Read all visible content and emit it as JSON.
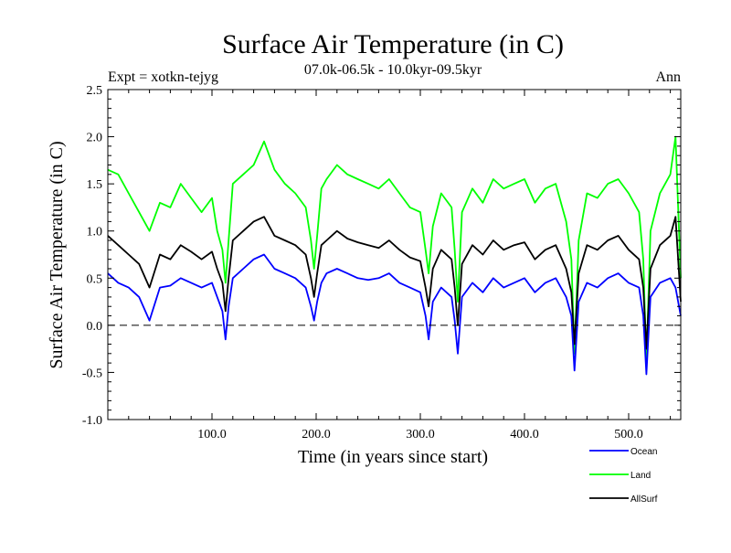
{
  "chart_data": {
    "type": "line",
    "title": "Surface Air Temperature (in C)",
    "subtitle": "07.0k-06.5k - 10.0kyr-09.5kyr",
    "expt_label": "Expt = xotkn-tejyg",
    "season_label": "Ann",
    "xlabel": "Time (in years since start)",
    "ylabel": "Surface Air Temperature (in C)",
    "xlim": [
      0,
      550
    ],
    "ylim": [
      -1.0,
      2.5
    ],
    "x_ticks": [
      100,
      200,
      300,
      400,
      500
    ],
    "x_tick_labels": [
      "100.0",
      "200.0",
      "300.0",
      "400.0",
      "500.0"
    ],
    "y_ticks": [
      -1.0,
      -0.5,
      0.0,
      0.5,
      1.0,
      1.5,
      2.0,
      2.5
    ],
    "y_tick_labels": [
      "-1.0",
      "-0.5",
      "0.0",
      "0.5",
      "1.0",
      "1.5",
      "2.0",
      "2.5"
    ],
    "reference_line": 0.0,
    "x": [
      0,
      10,
      20,
      30,
      40,
      50,
      60,
      70,
      80,
      90,
      100,
      105,
      110,
      113,
      116,
      120,
      130,
      140,
      150,
      160,
      170,
      180,
      190,
      195,
      198,
      201,
      205,
      210,
      220,
      230,
      240,
      250,
      260,
      270,
      280,
      290,
      300,
      305,
      308,
      312,
      320,
      330,
      333,
      336,
      340,
      350,
      360,
      370,
      380,
      390,
      400,
      410,
      420,
      430,
      440,
      445,
      448,
      452,
      460,
      470,
      480,
      490,
      500,
      510,
      514,
      517,
      521,
      530,
      540,
      545,
      550
    ],
    "series": [
      {
        "name": "Ocean",
        "color": "#0000ff",
        "values": [
          0.55,
          0.45,
          0.4,
          0.3,
          0.05,
          0.4,
          0.42,
          0.5,
          0.45,
          0.4,
          0.45,
          0.3,
          0.15,
          -0.15,
          0.2,
          0.5,
          0.6,
          0.7,
          0.75,
          0.6,
          0.55,
          0.5,
          0.4,
          0.2,
          0.05,
          0.25,
          0.45,
          0.55,
          0.6,
          0.55,
          0.5,
          0.48,
          0.5,
          0.55,
          0.45,
          0.4,
          0.35,
          0.1,
          -0.15,
          0.25,
          0.4,
          0.3,
          0.05,
          -0.3,
          0.3,
          0.45,
          0.35,
          0.5,
          0.4,
          0.45,
          0.5,
          0.35,
          0.45,
          0.5,
          0.3,
          0.1,
          -0.48,
          0.25,
          0.45,
          0.4,
          0.5,
          0.55,
          0.45,
          0.4,
          0.1,
          -0.52,
          0.3,
          0.45,
          0.5,
          0.4,
          0.1
        ]
      },
      {
        "name": "Land",
        "color": "#00ff00",
        "values": [
          1.65,
          1.6,
          1.4,
          1.2,
          1.0,
          1.3,
          1.25,
          1.5,
          1.35,
          1.2,
          1.35,
          1.0,
          0.8,
          0.45,
          0.9,
          1.5,
          1.6,
          1.7,
          1.95,
          1.65,
          1.5,
          1.4,
          1.25,
          0.9,
          0.6,
          0.95,
          1.45,
          1.55,
          1.7,
          1.6,
          1.55,
          1.5,
          1.45,
          1.55,
          1.4,
          1.25,
          1.2,
          0.8,
          0.55,
          1.05,
          1.4,
          1.25,
          0.8,
          0.25,
          1.2,
          1.45,
          1.3,
          1.55,
          1.45,
          1.5,
          1.55,
          1.3,
          1.45,
          1.5,
          1.1,
          0.7,
          -0.3,
          0.9,
          1.4,
          1.35,
          1.5,
          1.55,
          1.4,
          1.2,
          0.7,
          -0.4,
          1.0,
          1.4,
          1.6,
          2.0,
          0.5
        ]
      },
      {
        "name": "AllSurf",
        "color": "#000000",
        "values": [
          0.95,
          0.85,
          0.75,
          0.65,
          0.4,
          0.75,
          0.7,
          0.85,
          0.78,
          0.7,
          0.78,
          0.6,
          0.45,
          0.15,
          0.5,
          0.9,
          1.0,
          1.1,
          1.15,
          0.95,
          0.9,
          0.85,
          0.75,
          0.5,
          0.3,
          0.55,
          0.85,
          0.9,
          1.0,
          0.92,
          0.88,
          0.85,
          0.82,
          0.9,
          0.8,
          0.72,
          0.68,
          0.4,
          0.2,
          0.6,
          0.8,
          0.7,
          0.4,
          0.0,
          0.65,
          0.85,
          0.75,
          0.9,
          0.8,
          0.85,
          0.88,
          0.7,
          0.8,
          0.85,
          0.6,
          0.35,
          -0.2,
          0.55,
          0.85,
          0.8,
          0.9,
          0.95,
          0.8,
          0.7,
          0.4,
          -0.25,
          0.6,
          0.85,
          0.95,
          1.15,
          0.25
        ]
      }
    ]
  }
}
